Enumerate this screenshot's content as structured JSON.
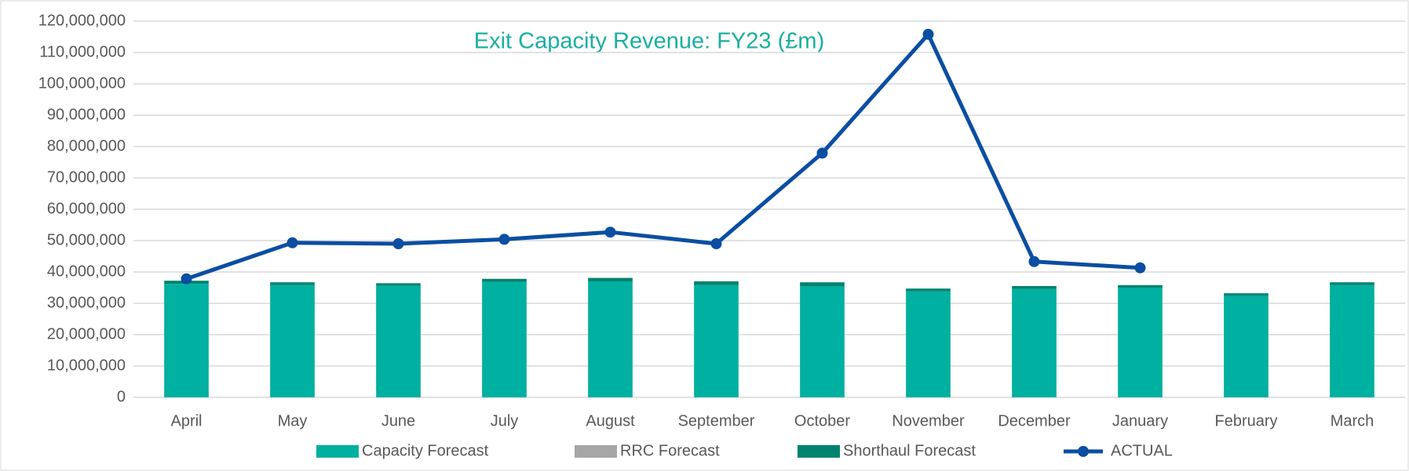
{
  "chart_data": {
    "type": "bar",
    "title": "Exit Capacity Revenue: FY23 (£m)",
    "categories": [
      "April",
      "May",
      "June",
      "July",
      "August",
      "September",
      "October",
      "November",
      "December",
      "January",
      "February",
      "March"
    ],
    "stacked": true,
    "grid": true,
    "legend": "bottom",
    "ylim": [
      0,
      120000000
    ],
    "yticks": [
      0,
      {
        "value": 10000000,
        "label": "10,000,000"
      },
      {
        "value": 20000000,
        "label": "20,000,000"
      },
      {
        "value": 30000000,
        "label": "30,000,000"
      },
      {
        "value": 40000000,
        "label": "40,000,000"
      },
      {
        "value": 50000000,
        "label": "50,000,000"
      },
      {
        "value": 60000000,
        "label": "60,000,000"
      },
      {
        "value": 70000000,
        "label": "70,000,000"
      },
      {
        "value": 80000000,
        "label": "80,000,000"
      },
      {
        "value": 90000000,
        "label": "90,000,000"
      },
      {
        "value": 100000000,
        "label": "100,000,000"
      },
      {
        "value": 110000000,
        "label": "110,000,000"
      },
      {
        "value": 120000000,
        "label": "120,000,000"
      }
    ],
    "series": [
      {
        "name": "Capacity Forecast",
        "type": "bar",
        "color": "#00b0a0",
        "values": [
          36200000,
          35800000,
          35600000,
          36800000,
          37000000,
          35800000,
          35400000,
          33800000,
          34600000,
          35000000,
          32400000,
          35800000
        ]
      },
      {
        "name": "RRC Forecast",
        "type": "bar",
        "color": "#a6a6a6",
        "values": [
          0,
          0,
          0,
          0,
          0,
          0,
          0,
          0,
          0,
          0,
          0,
          0
        ]
      },
      {
        "name": "Shorthaul Forecast",
        "type": "bar",
        "color": "#00836f",
        "values": [
          1000000,
          900000,
          800000,
          1000000,
          1100000,
          1200000,
          1300000,
          900000,
          900000,
          800000,
          800000,
          900000
        ]
      },
      {
        "name": "ACTUAL",
        "type": "line",
        "color": "#0b4ea2",
        "values": [
          37800000,
          49300000,
          49000000,
          50400000,
          52700000,
          49000000,
          77900000,
          115800000,
          43300000,
          41300000,
          null,
          null
        ]
      }
    ]
  }
}
